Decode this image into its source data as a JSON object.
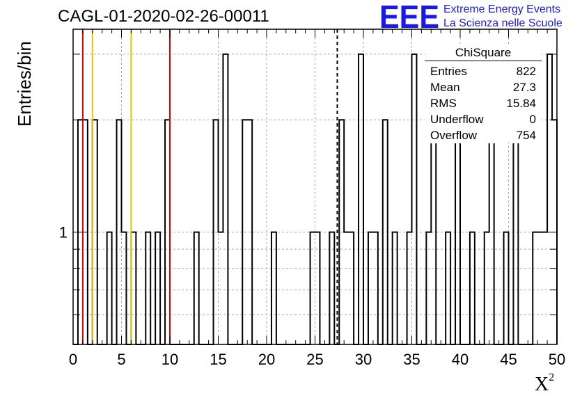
{
  "title": "CAGL-01-2020-02-26-00011",
  "logo": {
    "mark": "EEE",
    "line1": "Extreme Energy Events",
    "line2": "La Scienza nelle Scuole",
    "color": "#1a1ae6"
  },
  "chart_data": {
    "type": "bar",
    "histogram": true,
    "xlabel": "X",
    "xlabel_sup": "2",
    "ylabel": "Entries/bin",
    "xlim": [
      0,
      50
    ],
    "ylim": [
      0.5,
      3.5
    ],
    "yscale": "log",
    "bin_width": 0.5,
    "xticks": [
      0,
      5,
      10,
      15,
      20,
      25,
      30,
      35,
      40,
      45,
      50
    ],
    "yticks": [
      1
    ],
    "grid": true,
    "bins_nonzero": [
      {
        "x": 0.5,
        "y": 2
      },
      {
        "x": 1.0,
        "y": 2
      },
      {
        "x": 2.0,
        "y": 2
      },
      {
        "x": 3.5,
        "y": 1
      },
      {
        "x": 4.5,
        "y": 2
      },
      {
        "x": 5.0,
        "y": 1
      },
      {
        "x": 6.0,
        "y": 1
      },
      {
        "x": 7.5,
        "y": 1
      },
      {
        "x": 8.5,
        "y": 1
      },
      {
        "x": 9.5,
        "y": 2
      },
      {
        "x": 12.5,
        "y": 1
      },
      {
        "x": 14.5,
        "y": 2
      },
      {
        "x": 15.0,
        "y": 1
      },
      {
        "x": 15.5,
        "y": 3
      },
      {
        "x": 17.5,
        "y": 2
      },
      {
        "x": 18.0,
        "y": 2
      },
      {
        "x": 20.5,
        "y": 1
      },
      {
        "x": 24.5,
        "y": 1
      },
      {
        "x": 25.0,
        "y": 1
      },
      {
        "x": 26.5,
        "y": 1
      },
      {
        "x": 27.5,
        "y": 2
      },
      {
        "x": 28.0,
        "y": 1
      },
      {
        "x": 28.5,
        "y": 1
      },
      {
        "x": 29.5,
        "y": 3
      },
      {
        "x": 30.5,
        "y": 1
      },
      {
        "x": 31.0,
        "y": 1
      },
      {
        "x": 32.0,
        "y": 2
      },
      {
        "x": 33.0,
        "y": 1
      },
      {
        "x": 34.5,
        "y": 1
      },
      {
        "x": 35.0,
        "y": 3
      },
      {
        "x": 36.5,
        "y": 1
      },
      {
        "x": 37.0,
        "y": 2
      },
      {
        "x": 38.5,
        "y": 1
      },
      {
        "x": 39.5,
        "y": 2
      },
      {
        "x": 41.0,
        "y": 1
      },
      {
        "x": 42.5,
        "y": 1
      },
      {
        "x": 43.0,
        "y": 2
      },
      {
        "x": 44.5,
        "y": 1
      },
      {
        "x": 45.5,
        "y": 2
      },
      {
        "x": 47.5,
        "y": 1
      },
      {
        "x": 48.0,
        "y": 1
      },
      {
        "x": 48.5,
        "y": 1
      },
      {
        "x": 49.0,
        "y": 3
      },
      {
        "x": 49.5,
        "y": 2
      }
    ],
    "vertical_lines": [
      {
        "x": 1.0,
        "color": "#e00000",
        "style": "solid"
      },
      {
        "x": 2.0,
        "color": "#f0c000",
        "style": "solid"
      },
      {
        "x": 6.0,
        "color": "#f0c000",
        "style": "solid"
      },
      {
        "x": 10.0,
        "color": "#e00000",
        "style": "solid"
      },
      {
        "x": 27.3,
        "color": "#000000",
        "style": "dashed"
      }
    ],
    "stats": {
      "title": "ChiSquare",
      "rows": [
        {
          "label": "Entries",
          "value": "822"
        },
        {
          "label": "Mean",
          "value": "27.3"
        },
        {
          "label": "RMS",
          "value": "15.84"
        },
        {
          "label": "Underflow",
          "value": "0"
        },
        {
          "label": "Overflow",
          "value": "754"
        }
      ]
    }
  }
}
